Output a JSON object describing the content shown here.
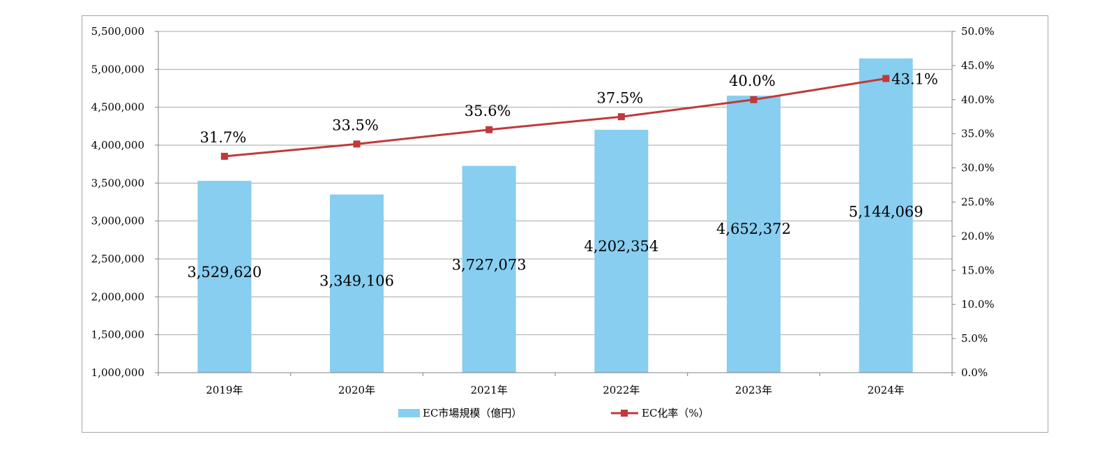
{
  "chart_data": {
    "type": "bar",
    "title": "",
    "categories": [
      "2019年",
      "2020年",
      "2021年",
      "2022年",
      "2023年",
      "2024年"
    ],
    "series": [
      {
        "name": "EC市場規模（億円）",
        "type": "bar",
        "axis": "left",
        "color": "#87CEF0",
        "values": [
          3529620,
          3349106,
          3727073,
          4202354,
          4652372,
          5144069
        ],
        "labels": [
          "3,529,620",
          "3,349,106",
          "3,727,073",
          "4,202,354",
          "4,652,372",
          "5,144,069"
        ]
      },
      {
        "name": "EC化率（%）",
        "type": "line",
        "axis": "right",
        "color": "#C0393B",
        "values": [
          31.7,
          33.5,
          35.6,
          37.5,
          40.0,
          43.1
        ],
        "labels": [
          "31.7%",
          "33.5%",
          "35.6%",
          "37.5%",
          "40.0%",
          "43.1%"
        ]
      }
    ],
    "left_axis": {
      "range": [
        1000000,
        5500000
      ],
      "ticks": [
        "1,000,000",
        "1,500,000",
        "2,000,000",
        "2,500,000",
        "3,000,000",
        "3,500,000",
        "4,000,000",
        "4,500,000",
        "5,000,000",
        "5,500,000"
      ]
    },
    "right_axis": {
      "range": [
        0,
        50
      ],
      "ticks": [
        "0.0%",
        "5.0%",
        "10.0%",
        "15.0%",
        "20.0%",
        "25.0%",
        "30.0%",
        "35.0%",
        "40.0%",
        "45.0%",
        "50.0%"
      ]
    },
    "grid": true,
    "legend_position": "bottom"
  }
}
